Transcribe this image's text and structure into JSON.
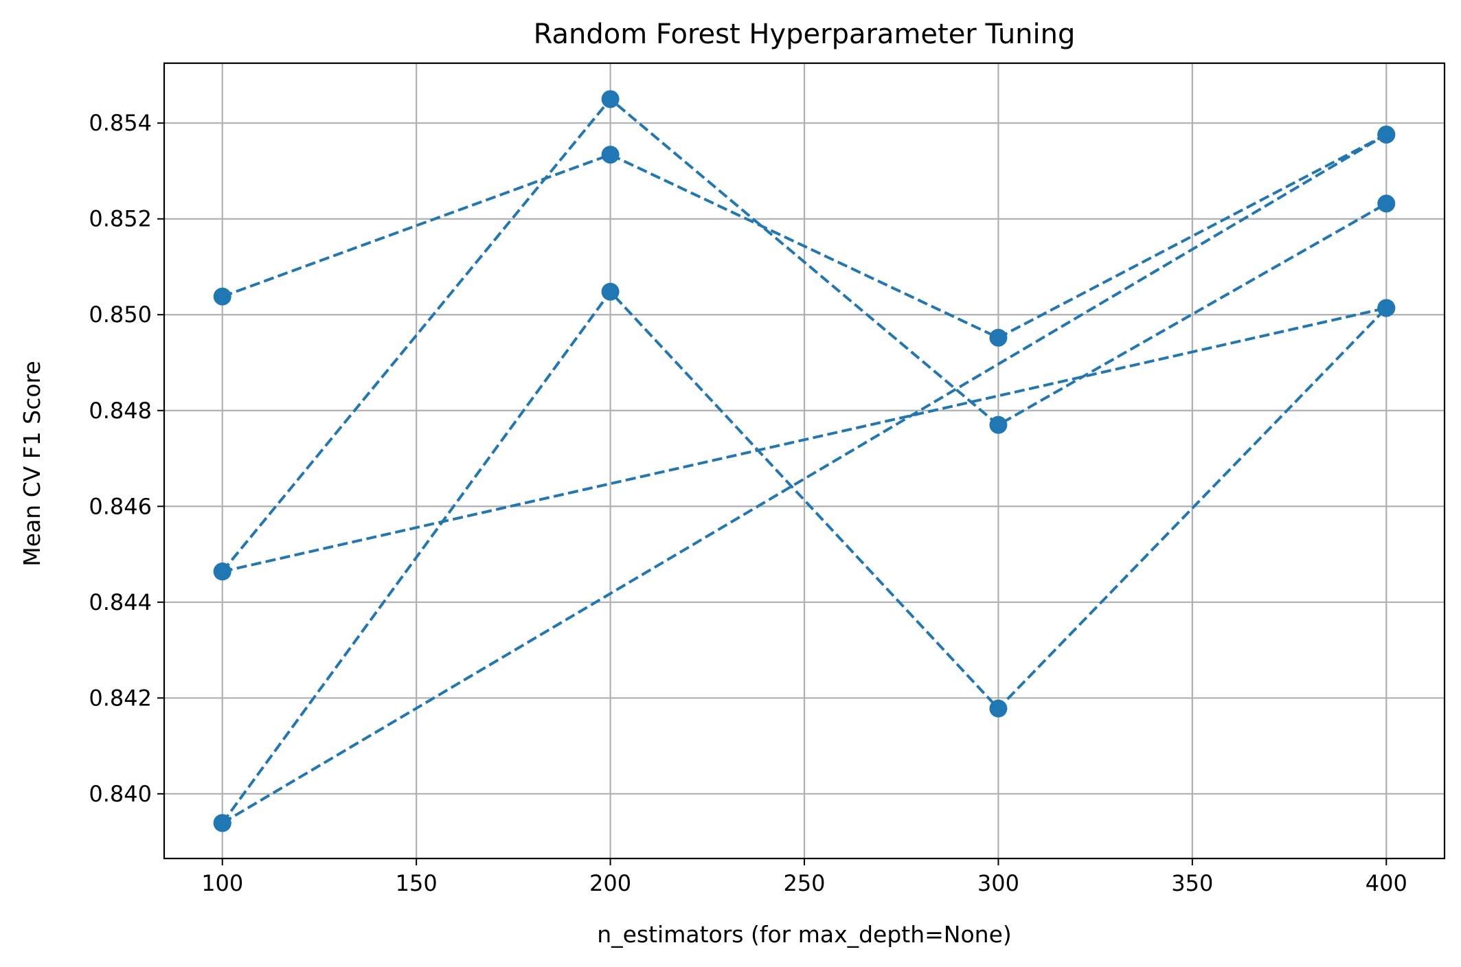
{
  "chart_data": {
    "type": "line",
    "title": "Random Forest Hyperparameter Tuning",
    "xlabel": "n_estimators (for max_depth=None)",
    "ylabel": "Mean CV F1 Score",
    "xlim": [
      85,
      415
    ],
    "ylim": [
      0.83865,
      0.85525
    ],
    "xticks": [
      100,
      150,
      200,
      250,
      300,
      350,
      400
    ],
    "yticks": [
      0.84,
      0.842,
      0.844,
      0.846,
      0.848,
      0.85,
      0.852,
      0.854
    ],
    "xtick_labels": [
      "100",
      "150",
      "200",
      "250",
      "300",
      "350",
      "400"
    ],
    "ytick_labels": [
      "0.840",
      "0.842",
      "0.844",
      "0.846",
      "0.848",
      "0.850",
      "0.852",
      "0.854"
    ],
    "grid": true,
    "color": "#1f77b4",
    "marker": "circle",
    "linestyle": "dashed",
    "series": [
      {
        "x": [
          100,
          200,
          300,
          400
        ],
        "values": [
          0.85038,
          0.85334,
          0.84952,
          0.85376
        ]
      },
      {
        "x": [
          100,
          200,
          300,
          400
        ],
        "values": [
          0.84464,
          0.8545,
          0.8477,
          0.85232
        ]
      },
      {
        "x": [
          100,
          200,
          300,
          400
        ],
        "values": [
          0.83939,
          0.85048,
          0.84178,
          0.85014
        ]
      },
      {
        "x": [
          100,
          400
        ],
        "values": [
          0.84464,
          0.85014
        ]
      },
      {
        "x": [
          100,
          400
        ],
        "values": [
          0.83939,
          0.85376
        ]
      }
    ]
  }
}
